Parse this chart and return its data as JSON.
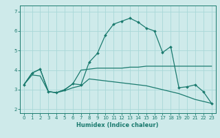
{
  "xlabel": "Humidex (Indice chaleur)",
  "ylabel": "",
  "bg_color": "#ceeaea",
  "line_color": "#1a7a6e",
  "grid_color": "#a8d8d8",
  "xlim": [
    -0.5,
    23.5
  ],
  "ylim": [
    1.8,
    7.3
  ],
  "yticks": [
    2,
    3,
    4,
    5,
    6,
    7
  ],
  "xticks": [
    0,
    1,
    2,
    3,
    4,
    5,
    6,
    7,
    8,
    9,
    10,
    11,
    12,
    13,
    14,
    15,
    16,
    17,
    18,
    19,
    20,
    21,
    22,
    23
  ],
  "line1_x": [
    0,
    1,
    2,
    3,
    4,
    5,
    6,
    7,
    8,
    9,
    10,
    11,
    12,
    13,
    14,
    15,
    16,
    17,
    18,
    19,
    20,
    21,
    22,
    23
  ],
  "line1_y": [
    3.25,
    3.85,
    4.05,
    2.9,
    2.85,
    3.0,
    3.3,
    3.25,
    4.4,
    4.85,
    5.8,
    6.35,
    6.5,
    6.65,
    6.45,
    6.15,
    6.0,
    4.9,
    5.2,
    3.1,
    3.15,
    3.25,
    2.9,
    2.3
  ],
  "line2_x": [
    0,
    1,
    2,
    3,
    4,
    5,
    6,
    7,
    8,
    9,
    10,
    11,
    12,
    13,
    14,
    15,
    16,
    17,
    18,
    19,
    20,
    21,
    22,
    23
  ],
  "line2_y": [
    3.25,
    3.85,
    4.05,
    2.9,
    2.85,
    3.0,
    3.3,
    4.0,
    4.05,
    4.1,
    4.1,
    4.1,
    4.1,
    4.15,
    4.15,
    4.2,
    4.2,
    4.2,
    4.2,
    4.2,
    4.2,
    4.2,
    4.2,
    4.2
  ],
  "line3_x": [
    0,
    1,
    2,
    3,
    4,
    5,
    6,
    7,
    8,
    9,
    10,
    11,
    12,
    13,
    14,
    15,
    16,
    17,
    18,
    19,
    20,
    21,
    22,
    23
  ],
  "line3_y": [
    3.25,
    3.75,
    3.7,
    2.9,
    2.85,
    2.95,
    3.1,
    3.2,
    3.55,
    3.5,
    3.45,
    3.4,
    3.35,
    3.3,
    3.25,
    3.2,
    3.1,
    3.0,
    2.9,
    2.8,
    2.65,
    2.5,
    2.4,
    2.3
  ],
  "marker_size": 2.0,
  "linewidth": 0.9,
  "xlabel_fontsize": 6.0,
  "tick_fontsize": 5.0
}
